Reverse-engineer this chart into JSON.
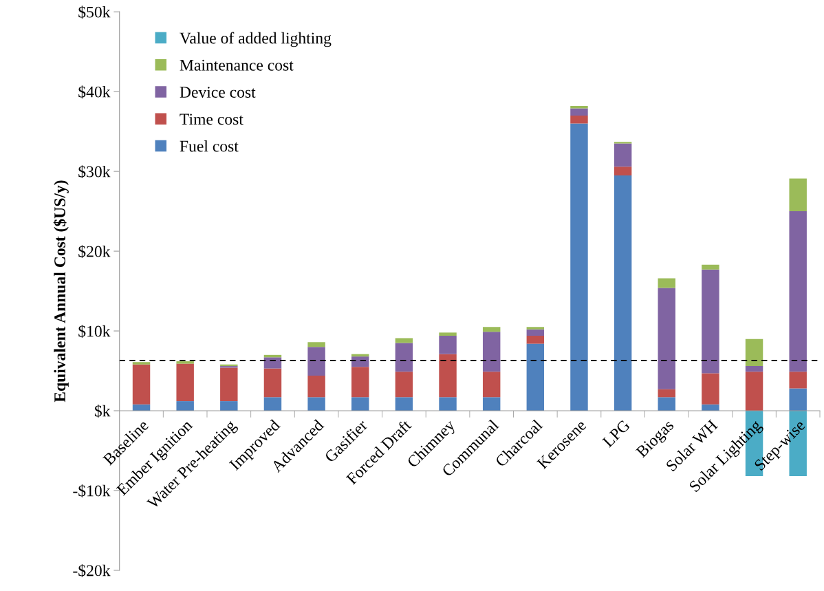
{
  "chart_data": {
    "type": "bar",
    "stacked": true,
    "ylabel": "Equivalent Annual Cost ($US/y)",
    "categories": [
      "Baseline",
      "Ember Ignition",
      "Water Pre-heating",
      "Improved",
      "Advanced",
      "Gasifier",
      "Forced Draft",
      "Chimney",
      "Communal",
      "Charcoal",
      "Kerosene",
      "LPG",
      "Biogas",
      "Solar WH",
      "Solar Lighting",
      "Step-wise"
    ],
    "series": [
      {
        "name": "Fuel cost",
        "color": "#4f81bd",
        "values": [
          0.8,
          1.2,
          1.2,
          1.7,
          1.7,
          1.7,
          1.7,
          1.7,
          1.7,
          8.4,
          36.0,
          29.5,
          1.7,
          0.8,
          0,
          2.8
        ]
      },
      {
        "name": "Time cost",
        "color": "#c0504d",
        "values": [
          5.0,
          4.7,
          4.2,
          3.6,
          2.7,
          3.8,
          3.2,
          5.4,
          3.2,
          1.0,
          1.0,
          1.1,
          1.0,
          3.9,
          4.9,
          2.1
        ]
      },
      {
        "name": "Device cost",
        "color": "#8064a2",
        "values": [
          0,
          0,
          0.2,
          1.4,
          3.6,
          1.3,
          3.6,
          2.3,
          5.0,
          0.8,
          0.9,
          2.9,
          12.7,
          13.0,
          0.7,
          20.1
        ]
      },
      {
        "name": "Maintenance cost",
        "color": "#9bbb59",
        "values": [
          0.3,
          0.3,
          0.2,
          0.3,
          0.6,
          0.3,
          0.6,
          0.4,
          0.6,
          0.3,
          0.3,
          0.2,
          1.2,
          0.6,
          3.4,
          4.1
        ]
      },
      {
        "name": "Value of added lighting",
        "color": "#4bacc6",
        "values": [
          null,
          null,
          null,
          null,
          null,
          null,
          null,
          null,
          null,
          null,
          null,
          null,
          null,
          null,
          -8.2,
          -8.2
        ]
      }
    ],
    "ylim": [
      -20,
      50
    ],
    "yticks": [
      {
        "value": -20,
        "label": "-$20k"
      },
      {
        "value": -10,
        "label": "-$10k"
      },
      {
        "value": 0,
        "label": "$k"
      },
      {
        "value": 10,
        "label": "$10k"
      },
      {
        "value": 20,
        "label": "$20k"
      },
      {
        "value": 30,
        "label": "$30k"
      },
      {
        "value": 40,
        "label": "$40k"
      },
      {
        "value": 50,
        "label": "$50k"
      }
    ],
    "ref_lines": [
      {
        "axis": "y",
        "value": 6.3,
        "color": "#000000",
        "line_style": "dashed"
      }
    ],
    "grid": false,
    "legend": "top left"
  }
}
